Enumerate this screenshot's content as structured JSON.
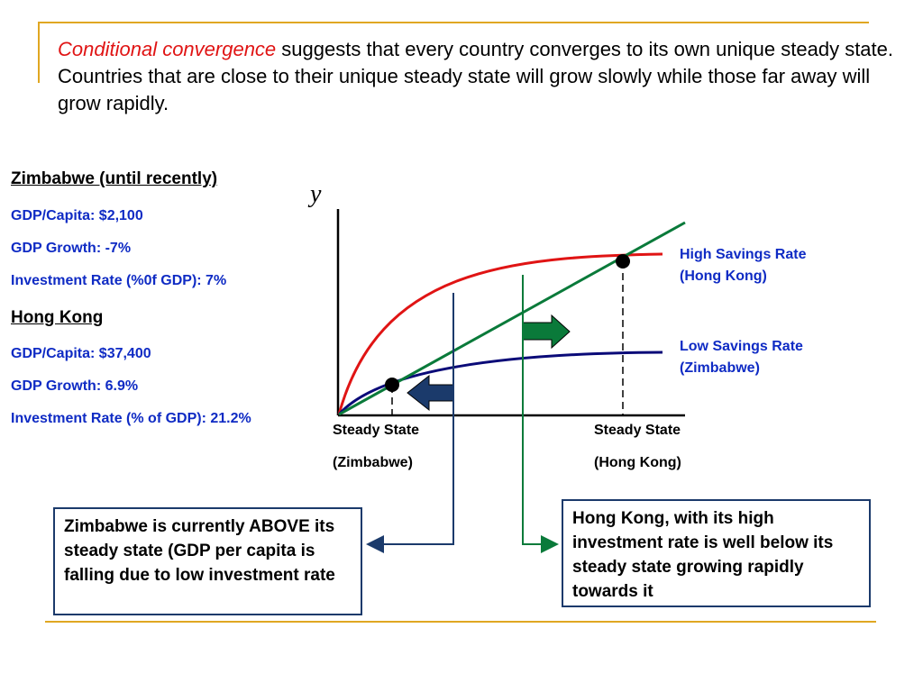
{
  "intro": {
    "highlight": "Conditional convergence",
    "rest": " suggests that every country converges to its own unique steady state.  Countries that are close to their unique steady state will grow slowly while those far away will grow rapidly."
  },
  "zimbabwe": {
    "heading": "Zimbabwe (until recently)",
    "gdp_per_capita": "GDP/Capita: $2,100",
    "gdp_growth": "GDP Growth: -7%",
    "investment_rate": "Investment Rate (%0f GDP): 7%"
  },
  "hong_kong": {
    "heading": "Hong Kong",
    "gdp_per_capita": "GDP/Capita: $37,400",
    "gdp_growth": "GDP Growth: 6.9%",
    "investment_rate": "Investment Rate (% of GDP): 21.2%"
  },
  "diagram": {
    "y_axis_label": "y",
    "high_curve_label_line1": "High Savings Rate",
    "high_curve_label_line2": "(Hong Kong)",
    "low_curve_label_line1": "Low Savings Rate",
    "low_curve_label_line2": "(Zimbabwe)",
    "ss_zimbabwe_line1": "Steady State",
    "ss_zimbabwe_line2": "(Zimbabwe)",
    "ss_hongkong_line1": "Steady State",
    "ss_hongkong_line2": "(Hong Kong)"
  },
  "notes": {
    "zimbabwe": "Zimbabwe is currently ABOVE its steady state (GDP per capita is falling due to low investment rate",
    "hong_kong": "Hong Kong, with its high investment rate is well below its steady state growing rapidly towards it"
  },
  "colors": {
    "high_curve": "#e01414",
    "low_curve": "#0a0a78",
    "depreciation_line": "#0a7a3a",
    "accent": "#e0a722",
    "label_blue": "#0f2bc4"
  }
}
